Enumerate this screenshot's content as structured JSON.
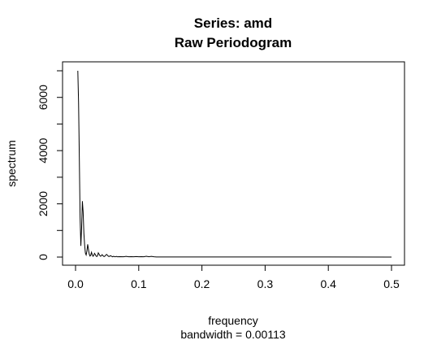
{
  "chart_data": {
    "type": "line",
    "title_line1": "Series: amd",
    "title_line2": "Raw Periodogram",
    "xlabel": "frequency",
    "xlabel_sub": "bandwidth = 0.00113",
    "ylabel": "spectrum",
    "xlim": [
      0,
      0.5
    ],
    "ylim": [
      0,
      7000
    ],
    "xticks": [
      0.0,
      0.1,
      0.2,
      0.3,
      0.4,
      0.5
    ],
    "xtick_labels": [
      "0.0",
      "0.1",
      "0.2",
      "0.3",
      "0.4",
      "0.5"
    ],
    "yticks": [
      0,
      2000,
      4000,
      6000
    ],
    "ytick_labels": [
      "0",
      "2000",
      "4000",
      "6000"
    ],
    "grid": false,
    "series": [
      {
        "x": [
          0.0036,
          0.0048,
          0.006,
          0.0072,
          0.0084,
          0.0096,
          0.0108,
          0.012,
          0.0132,
          0.0144,
          0.0156,
          0.0168,
          0.018,
          0.0192,
          0.0204,
          0.0216,
          0.0228,
          0.024,
          0.0252,
          0.0264,
          0.0276,
          0.0288,
          0.03,
          0.0312,
          0.0324,
          0.0336,
          0.0348,
          0.036,
          0.0372,
          0.0384,
          0.0396,
          0.0408,
          0.042,
          0.0432,
          0.0444,
          0.0456,
          0.0468,
          0.048,
          0.0492,
          0.0504,
          0.0516,
          0.0528,
          0.054,
          0.0552,
          0.0564,
          0.0576,
          0.0588,
          0.06,
          0.0612,
          0.0624,
          0.0636,
          0.0648,
          0.066,
          0.07,
          0.076,
          0.08,
          0.084,
          0.088,
          0.092,
          0.096,
          0.1,
          0.104,
          0.108,
          0.112,
          0.116,
          0.12,
          0.124,
          0.128,
          0.132,
          0.2,
          0.3,
          0.4,
          0.5
        ],
        "values": [
          7000,
          5800,
          3700,
          1500,
          420,
          1100,
          2100,
          1700,
          900,
          450,
          150,
          80,
          220,
          480,
          300,
          120,
          40,
          60,
          180,
          90,
          30,
          60,
          140,
          100,
          40,
          20,
          50,
          160,
          110,
          60,
          30,
          50,
          90,
          60,
          30,
          20,
          40,
          80,
          100,
          70,
          40,
          20,
          30,
          50,
          40,
          20,
          10,
          30,
          20,
          10,
          15,
          25,
          10,
          15,
          10,
          25,
          10,
          15,
          10,
          20,
          10,
          15,
          10,
          30,
          10,
          25,
          10,
          5,
          5,
          3,
          2,
          2,
          1
        ]
      }
    ]
  }
}
